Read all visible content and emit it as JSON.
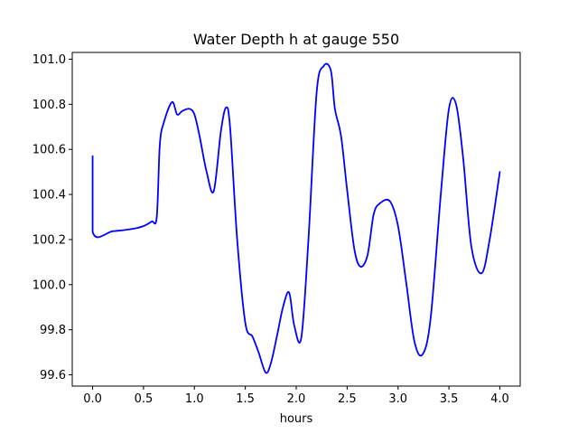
{
  "chart_data": {
    "type": "line",
    "title": "Water Depth h at gauge 550",
    "xlabel": "hours",
    "ylabel": "",
    "xlim": [
      -0.2,
      4.2
    ],
    "ylim": [
      99.55,
      101.03
    ],
    "xticks": [
      0.0,
      0.5,
      1.0,
      1.5,
      2.0,
      2.5,
      3.0,
      3.5,
      4.0
    ],
    "xtick_labels": [
      "0.0",
      "0.5",
      "1.0",
      "1.5",
      "2.0",
      "2.5",
      "3.0",
      "3.5",
      "4.0"
    ],
    "yticks": [
      99.6,
      99.8,
      100.0,
      100.2,
      100.4,
      100.6,
      100.8,
      101.0
    ],
    "ytick_labels": [
      "99.6",
      "99.8",
      "100.0",
      "100.2",
      "100.4",
      "100.6",
      "100.8",
      "101.0"
    ],
    "grid": false,
    "series": [
      {
        "color": "#0000ff",
        "x": [
          0.0,
          0.0,
          0.2,
          0.4,
          0.5,
          0.58,
          0.63,
          0.66,
          0.7,
          0.78,
          0.83,
          0.88,
          0.95,
          1.0,
          1.05,
          1.12,
          1.19,
          1.26,
          1.31,
          1.35,
          1.42,
          1.5,
          1.57,
          1.63,
          1.7,
          1.75,
          1.81,
          1.87,
          1.93,
          1.98,
          2.05,
          2.12,
          2.2,
          2.27,
          2.34,
          2.38,
          2.44,
          2.5,
          2.57,
          2.63,
          2.7,
          2.76,
          2.82,
          2.92,
          3.0,
          3.08,
          3.16,
          3.24,
          3.32,
          3.42,
          3.5,
          3.57,
          3.64,
          3.72,
          3.82,
          3.9,
          4.0
        ],
        "y": [
          100.57,
          100.235,
          100.237,
          100.248,
          100.26,
          100.28,
          100.3,
          100.62,
          100.72,
          100.81,
          100.755,
          100.77,
          100.78,
          100.755,
          100.66,
          100.5,
          100.415,
          100.68,
          100.785,
          100.7,
          100.2,
          99.83,
          99.77,
          99.7,
          99.61,
          99.65,
          99.77,
          99.9,
          99.965,
          99.82,
          99.765,
          100.2,
          100.85,
          100.97,
          100.95,
          100.78,
          100.66,
          100.42,
          100.16,
          100.08,
          100.13,
          100.31,
          100.36,
          100.37,
          100.26,
          100.01,
          99.75,
          99.69,
          99.85,
          100.4,
          100.78,
          100.8,
          100.56,
          100.17,
          100.05,
          100.2,
          100.5
        ]
      }
    ]
  }
}
